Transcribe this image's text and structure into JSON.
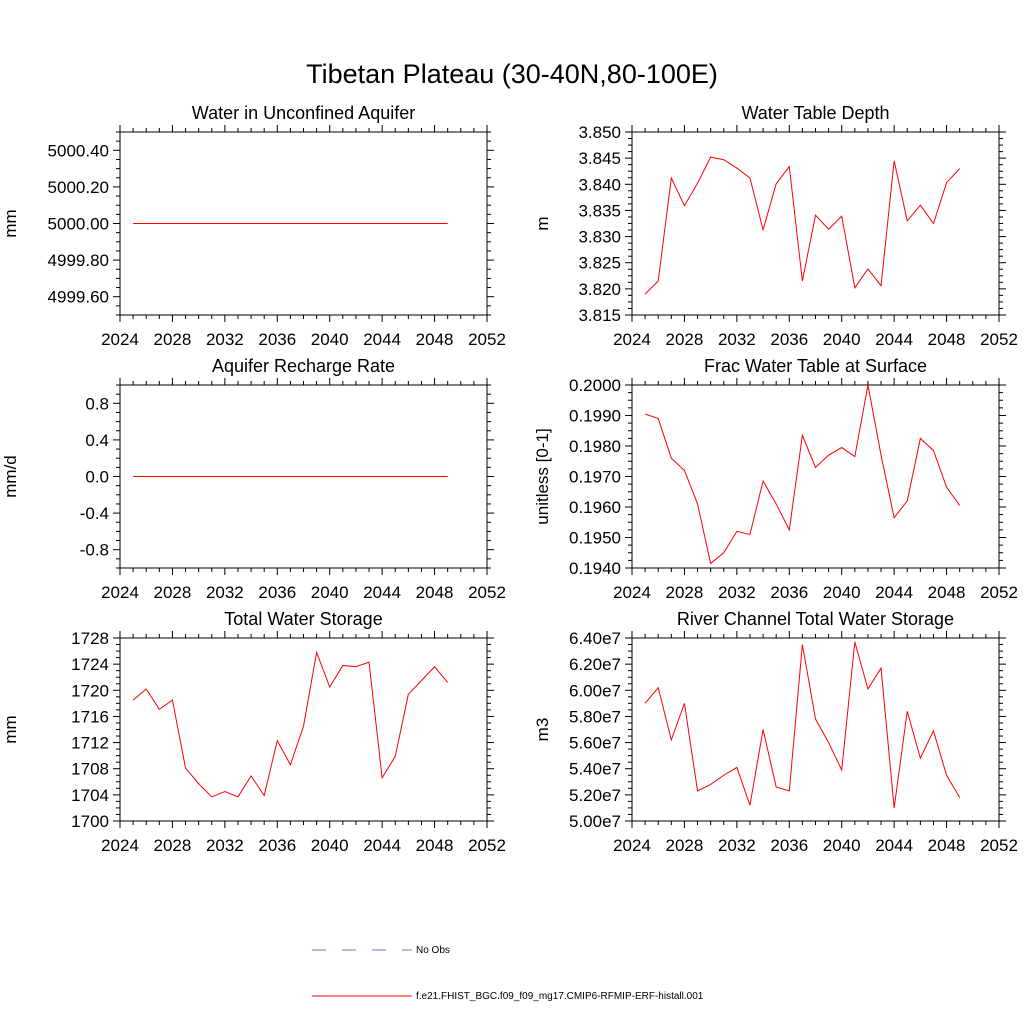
{
  "figure": {
    "title": "Tibetan Plateau (30-40N,80-100E)"
  },
  "colors": {
    "model_line": "#ff0000",
    "obs_line": "#6f74c6",
    "axis": "#000000"
  },
  "legend": {
    "entries": [
      {
        "label": "No Obs",
        "style": "dashed",
        "color": "#6f74c6"
      },
      {
        "label": "f.e21.FHIST_BGC.f09_f09_mg17.CMIP6-RFMIP-ERF-histall.001",
        "style": "solid",
        "color": "#ff0000"
      }
    ]
  },
  "chart_data": [
    {
      "type": "line",
      "title": "Water in Unconfined Aquifer",
      "ylabel": "mm",
      "xlim": [
        2024,
        2052
      ],
      "ylim": [
        4999.5,
        5000.5
      ],
      "x_ticks": [
        2024,
        2028,
        2032,
        2036,
        2040,
        2044,
        2048,
        2052
      ],
      "y_ticks": [
        "5000.40",
        "5000.20",
        "5000.00",
        "4999.80",
        "4999.60"
      ],
      "series": [
        {
          "x": [
            2025,
            2026,
            2027,
            2028,
            2029,
            2030,
            2031,
            2032,
            2033,
            2034,
            2035,
            2036,
            2037,
            2038,
            2039,
            2040,
            2041,
            2042,
            2043,
            2044,
            2045,
            2046,
            2047,
            2048,
            2049
          ],
          "values": [
            5000.0,
            5000.0,
            5000.0,
            5000.0,
            5000.0,
            5000.0,
            5000.0,
            5000.0,
            5000.0,
            5000.0,
            5000.0,
            5000.0,
            5000.0,
            5000.0,
            5000.0,
            5000.0,
            5000.0,
            5000.0,
            5000.0,
            5000.0,
            5000.0,
            5000.0,
            5000.0,
            5000.0,
            5000.0
          ]
        }
      ]
    },
    {
      "type": "line",
      "title": "Water Table Depth",
      "ylabel": "m",
      "xlim": [
        2024,
        2052
      ],
      "ylim": [
        3.815,
        3.85
      ],
      "x_ticks": [
        2024,
        2028,
        2032,
        2036,
        2040,
        2044,
        2048,
        2052
      ],
      "y_ticks": [
        "3.850",
        "3.845",
        "3.840",
        "3.835",
        "3.830",
        "3.825",
        "3.820",
        "3.815"
      ],
      "series": [
        {
          "x": [
            2025,
            2026,
            2027,
            2028,
            2029,
            2030,
            2031,
            2032,
            2033,
            2034,
            2035,
            2036,
            2037,
            2038,
            2039,
            2040,
            2041,
            2042,
            2043,
            2044,
            2045,
            2046,
            2047,
            2048,
            2049
          ],
          "values": [
            3.819,
            3.8215,
            3.8412,
            3.8359,
            3.8402,
            3.8452,
            3.8447,
            3.8431,
            3.8412,
            3.8313,
            3.8401,
            3.8434,
            3.8215,
            3.8341,
            3.8314,
            3.8339,
            3.8202,
            3.8238,
            3.8206,
            3.8445,
            3.833,
            3.836,
            3.8325,
            3.8403,
            3.843
          ]
        }
      ]
    },
    {
      "type": "line",
      "title": "Aquifer Recharge Rate",
      "ylabel": "mm/d",
      "xlim": [
        2024,
        2052
      ],
      "ylim": [
        -1.0,
        1.0
      ],
      "x_ticks": [
        2024,
        2028,
        2032,
        2036,
        2040,
        2044,
        2048,
        2052
      ],
      "y_ticks": [
        "0.8",
        "0.4",
        "0.0",
        "-0.4",
        "-0.8"
      ],
      "series": [
        {
          "x": [
            2025,
            2026,
            2027,
            2028,
            2029,
            2030,
            2031,
            2032,
            2033,
            2034,
            2035,
            2036,
            2037,
            2038,
            2039,
            2040,
            2041,
            2042,
            2043,
            2044,
            2045,
            2046,
            2047,
            2048,
            2049
          ],
          "values": [
            0,
            0,
            0,
            0,
            0,
            0,
            0,
            0,
            0,
            0,
            0,
            0,
            0,
            0,
            0,
            0,
            0,
            0,
            0,
            0,
            0,
            0,
            0,
            0,
            0
          ]
        }
      ]
    },
    {
      "type": "line",
      "title": "Frac Water Table at Surface",
      "ylabel": "unitless [0-1]",
      "xlim": [
        2024,
        2052
      ],
      "ylim": [
        0.194,
        0.2
      ],
      "x_ticks": [
        2024,
        2028,
        2032,
        2036,
        2040,
        2044,
        2048,
        2052
      ],
      "y_ticks": [
        "0.2000",
        "0.1990",
        "0.1980",
        "0.1970",
        "0.1960",
        "0.1950",
        "0.1940"
      ],
      "series": [
        {
          "x": [
            2025,
            2026,
            2027,
            2028,
            2029,
            2030,
            2031,
            2032,
            2033,
            2034,
            2035,
            2036,
            2037,
            2038,
            2039,
            2040,
            2041,
            2042,
            2043,
            2044,
            2045,
            2046,
            2047,
            2048,
            2049
          ],
          "values": [
            0.19905,
            0.1989,
            0.1976,
            0.1972,
            0.1961,
            0.19415,
            0.1945,
            0.1952,
            0.1951,
            0.19685,
            0.1961,
            0.19525,
            0.19835,
            0.1973,
            0.1977,
            0.19795,
            0.19765,
            0.2,
            0.1977,
            0.19565,
            0.1962,
            0.19825,
            0.19785,
            0.19665,
            0.19605
          ]
        }
      ]
    },
    {
      "type": "line",
      "title": "Total Water Storage",
      "ylabel": "mm",
      "xlim": [
        2024,
        2052
      ],
      "ylim": [
        1700,
        1728
      ],
      "x_ticks": [
        2024,
        2028,
        2032,
        2036,
        2040,
        2044,
        2048,
        2052
      ],
      "y_ticks": [
        "1728",
        "1724",
        "1720",
        "1716",
        "1712",
        "1708",
        "1704",
        "1700"
      ],
      "series": [
        {
          "x": [
            2025,
            2026,
            2027,
            2028,
            2029,
            2030,
            2031,
            2032,
            2033,
            2034,
            2035,
            2036,
            2037,
            2038,
            2039,
            2040,
            2041,
            2042,
            2043,
            2044,
            2045,
            2046,
            2047,
            2048,
            2049
          ],
          "values": [
            1718.5,
            1720.2,
            1717.1,
            1718.5,
            1708.1,
            1705.7,
            1703.7,
            1704.5,
            1703.7,
            1706.9,
            1703.9,
            1712.3,
            1708.6,
            1714.5,
            1725.8,
            1720.5,
            1723.8,
            1723.6,
            1724.3,
            1706.6,
            1709.9,
            1719.4,
            1721.5,
            1723.6,
            1721.2
          ]
        }
      ]
    },
    {
      "type": "line",
      "title": "River Channel Total Water Storage",
      "ylabel": "m3",
      "xlim": [
        2024,
        2052
      ],
      "ylim": [
        50000000,
        64000000
      ],
      "x_ticks": [
        2024,
        2028,
        2032,
        2036,
        2040,
        2044,
        2048,
        2052
      ],
      "y_ticks": [
        "6.40e7",
        "6.20e7",
        "6.00e7",
        "5.80e7",
        "5.60e7",
        "5.40e7",
        "5.20e7",
        "5.00e7"
      ],
      "series": [
        {
          "x": [
            2025,
            2026,
            2027,
            2028,
            2029,
            2030,
            2031,
            2032,
            2033,
            2034,
            2035,
            2036,
            2037,
            2038,
            2039,
            2040,
            2041,
            2042,
            2043,
            2044,
            2045,
            2046,
            2047,
            2048,
            2049
          ],
          "values": [
            59000000,
            60200000,
            56200000,
            59000000,
            52300000,
            52800000,
            53500000,
            54100000,
            51200000,
            57000000,
            52600000,
            52300000,
            63500000,
            57800000,
            56000000,
            53900000,
            63700000,
            60100000,
            61700000,
            51000000,
            58400000,
            54800000,
            56900000,
            53500000,
            51800000
          ]
        }
      ]
    }
  ]
}
